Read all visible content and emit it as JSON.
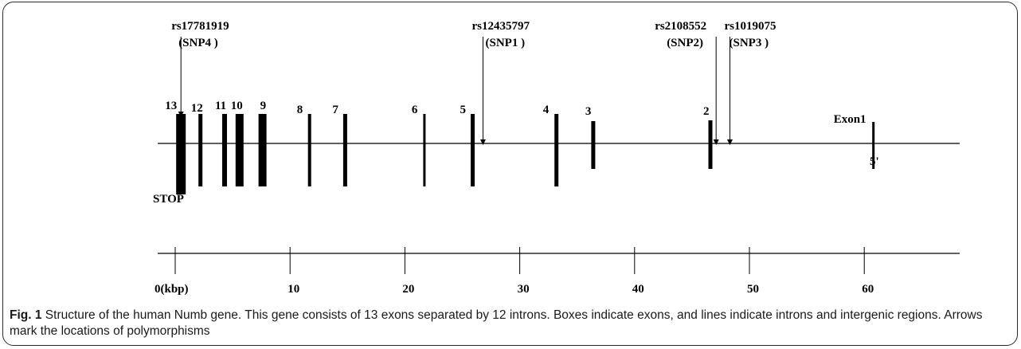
{
  "figure": {
    "exons": [
      {
        "label": "13",
        "pos_kbp": 0.5
      },
      {
        "label": "12",
        "pos_kbp": 2.2
      },
      {
        "label": "11",
        "pos_kbp": 4.3
      },
      {
        "label": "10",
        "pos_kbp": 5.6
      },
      {
        "label": "9",
        "pos_kbp": 7.6
      },
      {
        "label": "8",
        "pos_kbp": 11.7
      },
      {
        "label": "7",
        "pos_kbp": 14.8
      },
      {
        "label": "6",
        "pos_kbp": 21.7
      },
      {
        "label": "5",
        "pos_kbp": 25.9
      },
      {
        "label": "4",
        "pos_kbp": 33.2
      },
      {
        "label": "3",
        "pos_kbp": 36.4
      },
      {
        "label": "2",
        "pos_kbp": 46.6
      },
      {
        "label": "Exon1",
        "pos_kbp": 60.8
      }
    ],
    "snps": [
      {
        "rs": "rs17781919",
        "snp": "(SNP4 )",
        "pos_kbp": 0.5
      },
      {
        "rs": "rs12435797",
        "snp": "(SNP1 )",
        "pos_kbp": 26.8
      },
      {
        "rs": "rs2108552",
        "snp": "(SNP2)",
        "pos_kbp": 47.1
      },
      {
        "rs": "rs1019075",
        "snp": "(SNP3 )",
        "pos_kbp": 48.3
      }
    ],
    "stop_label": "STOP",
    "five_prime_label": "5'",
    "scale": {
      "unit_label": "0(kbp)",
      "ticks": [
        0,
        10,
        20,
        30,
        40,
        50,
        60
      ],
      "tick_labels": [
        "0(kbp)",
        "10",
        "20",
        "30",
        "40",
        "50",
        "60"
      ]
    }
  },
  "caption": {
    "label": "Fig. 1",
    "text": "Structure of the human Numb gene. This gene consists of 13 exons separated by 12 introns. Boxes indicate exons, and lines indicate introns and intergenic regions. Arrows mark the locations of polymorphisms"
  }
}
